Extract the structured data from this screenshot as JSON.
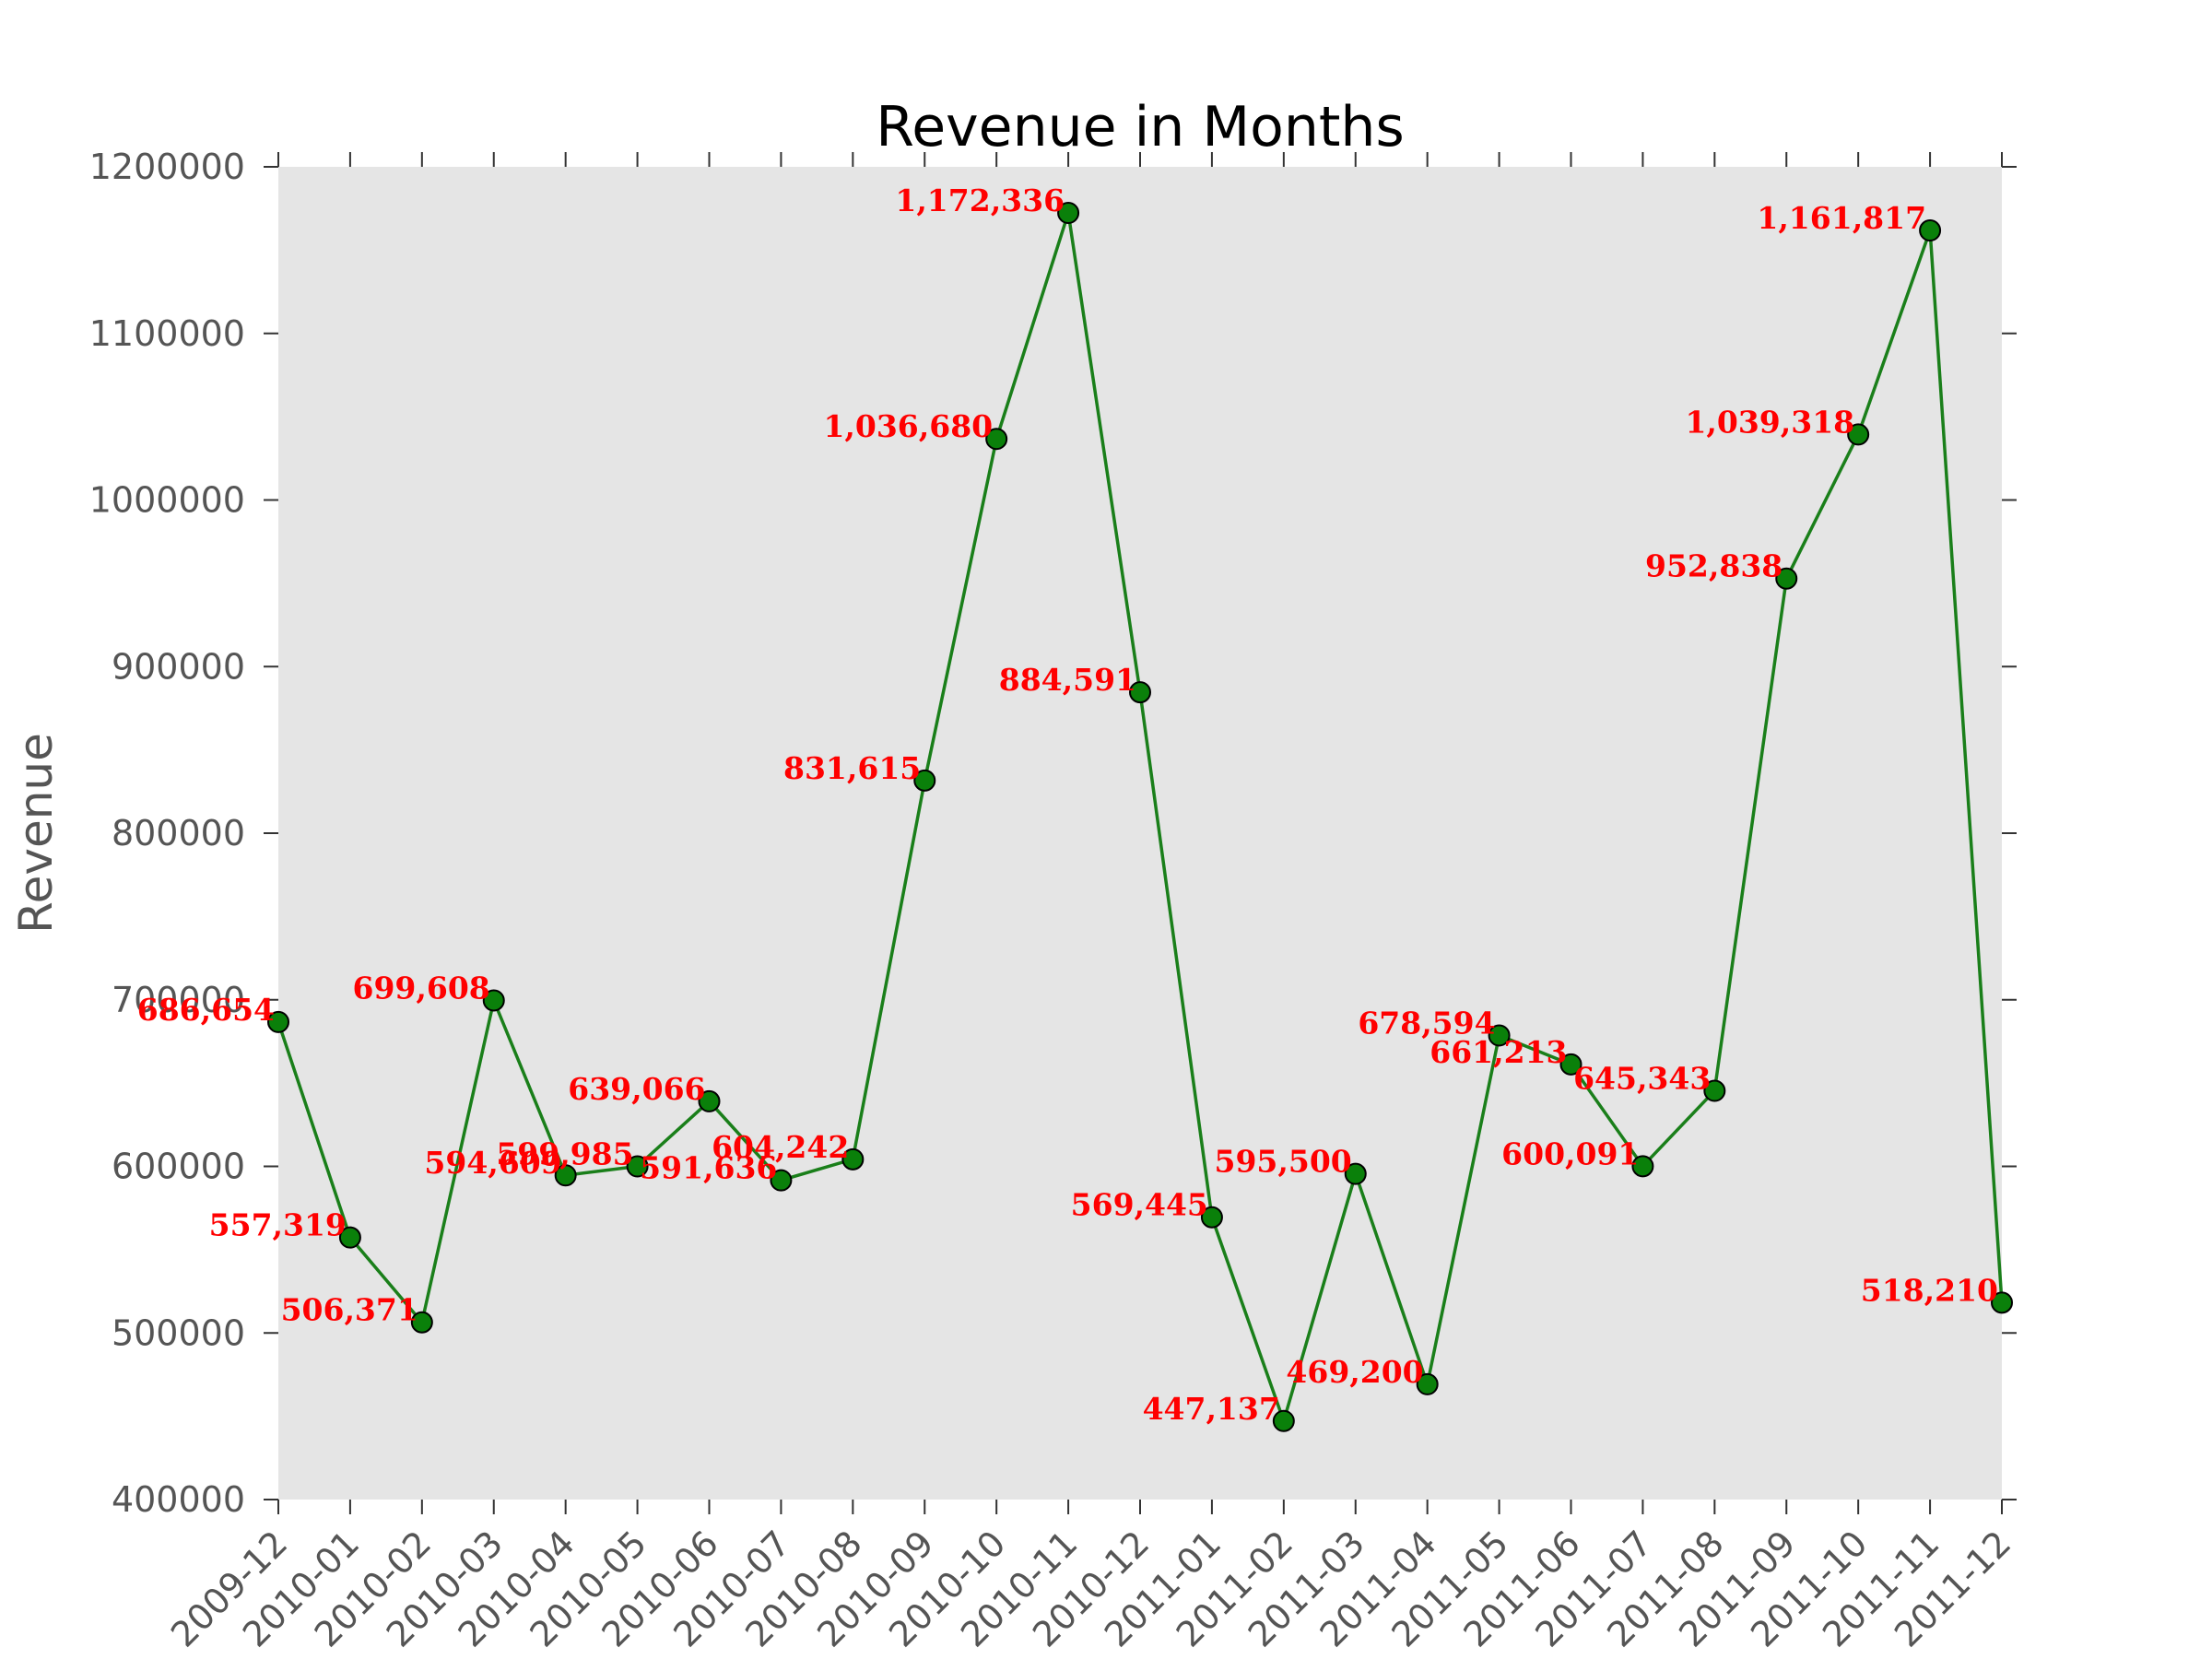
{
  "chart_data": {
    "type": "line",
    "title": "Revenue in Months",
    "xlabel": "",
    "ylabel": "Revenue",
    "ylim": [
      400000,
      1200000
    ],
    "yticks": [
      "400000",
      "500000",
      "600000",
      "700000",
      "800000",
      "900000",
      "1000000",
      "1100000",
      "1200000"
    ],
    "yticks_values": [
      400000,
      500000,
      600000,
      700000,
      800000,
      900000,
      1000000,
      1100000,
      1200000
    ],
    "categories": [
      "2009-12",
      "2010-01",
      "2010-02",
      "2010-03",
      "2010-04",
      "2010-05",
      "2010-06",
      "2010-07",
      "2010-08",
      "2010-09",
      "2010-10",
      "2010-11",
      "2010-12",
      "2011-01",
      "2011-02",
      "2011-03",
      "2011-04",
      "2011-05",
      "2011-06",
      "2011-07",
      "2011-08",
      "2011-09",
      "2011-10",
      "2011-11",
      "2011-12"
    ],
    "values": [
      686654,
      557319,
      506371,
      699608,
      594609,
      599985,
      639066,
      591636,
      604242,
      831615,
      1036680,
      1172336,
      884591,
      569445,
      447137,
      595500,
      469200,
      678594,
      661213,
      600091,
      645343,
      952838,
      1039318,
      1161817,
      518210
    ],
    "data_labels": [
      "686,654",
      "557,319",
      "506,371",
      "699,608",
      "594,609",
      "599,985",
      "639,066",
      "591,636",
      "604,242",
      "831,615",
      "1,036,680",
      "1,172,336",
      "884,591",
      "569,445",
      "447,137",
      "595,500",
      "469,200",
      "678,594",
      "661,213",
      "600,091",
      "645,343",
      "952,838",
      "1,039,318",
      "1,161,817",
      "518,210"
    ],
    "grid": false,
    "colors": {
      "line": "#1a7f1a",
      "marker": "#0a800a",
      "marker_edge": "#000000",
      "label": "#ff0000",
      "plot_background": "#e5e5e5",
      "axis_text": "#555555"
    }
  }
}
